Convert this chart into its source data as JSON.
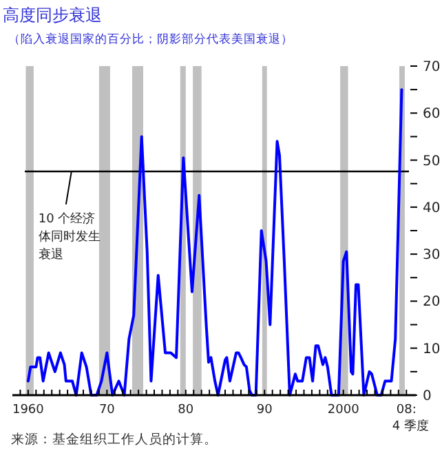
{
  "chart_data": {
    "type": "line",
    "title": "高度同步衰退",
    "subtitle": "（陷入衰退国家的百分比；阴影部分代表美国衰退）",
    "annotations": [
      {
        "text": "10 个经济体同时发生衰退",
        "x": 1965.5,
        "y": 47.6
      },
      "来源：基金组织工作人员的计算。"
    ],
    "series": [
      {
        "color": "#0000ff",
        "x": [
          1960.0,
          1960.3,
          1961.0,
          1961.2,
          1961.5,
          1961.9,
          1962.6,
          1963.4,
          1964.1,
          1964.6,
          1964.8,
          1965.6,
          1966.1,
          1966.8,
          1967.4,
          1968.0,
          1968.7,
          1969.3,
          1970.0,
          1970.7,
          1971.5,
          1972.2,
          1972.8,
          1973.4,
          1974.4,
          1975.1,
          1975.6,
          1976.5,
          1977.4,
          1978.1,
          1978.8,
          1979.7,
          1980.8,
          1981.7,
          1982.6,
          1982.9,
          1983.2,
          1983.7,
          1984.1,
          1985.0,
          1985.2,
          1985.6,
          1986.4,
          1986.7,
          1987.0,
          1987.4,
          1987.7,
          1988.1,
          1988.4,
          1988.9,
          1989.6,
          1990.2,
          1990.7,
          1991.6,
          1991.9,
          1992.5,
          1993.2,
          1993.9,
          1994.2,
          1994.8,
          1995.3,
          1995.7,
          1996.1,
          1996.5,
          1996.8,
          1997.4,
          1997.7,
          1998.0,
          1998.5,
          1999.4,
          2000.0,
          2000.4,
          2001.0,
          2001.2,
          2001.6,
          2001.9,
          2002.6,
          2003.3,
          2003.6,
          2004.3,
          2004.8,
          2005.3,
          2006.1,
          2006.6,
          2007.4
        ],
        "values": [
          3,
          6,
          6,
          8,
          8,
          3,
          9,
          5,
          9,
          6.5,
          3,
          3,
          0,
          9,
          6,
          0,
          0,
          3,
          9,
          0,
          3,
          0,
          12,
          17,
          55,
          30.5,
          3,
          25.5,
          9,
          9,
          8,
          50.5,
          22,
          42.5,
          15,
          7,
          8,
          3,
          0,
          7.5,
          8,
          3,
          9,
          9,
          8,
          6.5,
          6,
          1,
          0,
          0,
          35,
          28.5,
          15,
          54,
          51,
          28.5,
          0,
          4.5,
          3,
          3,
          8,
          8,
          3,
          10.5,
          10.5,
          6.5,
          8,
          6,
          0,
          0,
          28.5,
          30.5,
          5,
          4.5,
          23.5,
          23.5,
          0,
          5,
          4.5,
          0,
          0,
          3,
          3,
          12,
          65
        ]
      }
    ],
    "xlim": [
      1958,
      2009.2
    ],
    "ylim": [
      0,
      70
    ],
    "xticks": [
      {
        "value": 1959,
        "label": null
      },
      {
        "value": 1960,
        "label": "1960"
      },
      {
        "value": 1961,
        "label": null
      },
      {
        "value": 1962,
        "label": null
      },
      {
        "value": 1963,
        "label": null
      },
      {
        "value": 1964,
        "label": null
      },
      {
        "value": 1965,
        "label": null
      },
      {
        "value": 1966,
        "label": null
      },
      {
        "value": 1967,
        "label": null
      },
      {
        "value": 1968,
        "label": null
      },
      {
        "value": 1969,
        "label": null
      },
      {
        "value": 1970,
        "label": "70"
      },
      {
        "value": 1971,
        "label": null
      },
      {
        "value": 1972,
        "label": null
      },
      {
        "value": 1973,
        "label": null
      },
      {
        "value": 1974,
        "label": null
      },
      {
        "value": 1975,
        "label": null
      },
      {
        "value": 1976,
        "label": null
      },
      {
        "value": 1977,
        "label": null
      },
      {
        "value": 1978,
        "label": null
      },
      {
        "value": 1979,
        "label": null
      },
      {
        "value": 1980,
        "label": "80"
      },
      {
        "value": 1981,
        "label": null
      },
      {
        "value": 1982,
        "label": null
      },
      {
        "value": 1983,
        "label": null
      },
      {
        "value": 1984,
        "label": null
      },
      {
        "value": 1985,
        "label": null
      },
      {
        "value": 1986,
        "label": null
      },
      {
        "value": 1987,
        "label": null
      },
      {
        "value": 1988,
        "label": null
      },
      {
        "value": 1989,
        "label": null
      },
      {
        "value": 1990,
        "label": "90"
      },
      {
        "value": 1991,
        "label": null
      },
      {
        "value": 1992,
        "label": null
      },
      {
        "value": 1993,
        "label": null
      },
      {
        "value": 1994,
        "label": null
      },
      {
        "value": 1995,
        "label": null
      },
      {
        "value": 1996,
        "label": null
      },
      {
        "value": 1997,
        "label": null
      },
      {
        "value": 1998,
        "label": null
      },
      {
        "value": 1999,
        "label": null
      },
      {
        "value": 2000,
        "label": "2000"
      },
      {
        "value": 2001,
        "label": null
      },
      {
        "value": 2002,
        "label": null
      },
      {
        "value": 2003,
        "label": null
      },
      {
        "value": 2004,
        "label": null
      },
      {
        "value": 2005,
        "label": null
      },
      {
        "value": 2006,
        "label": null
      },
      {
        "value": 2007,
        "label": null
      },
      {
        "value": 2008,
        "label": "08:\n4 季度"
      }
    ],
    "yticks": [
      0,
      {
        "value": 5,
        "label": null
      },
      10,
      {
        "value": 15,
        "label": null
      },
      20,
      {
        "value": 25,
        "label": null
      },
      30,
      {
        "value": 35,
        "label": null
      },
      40,
      {
        "value": 45,
        "label": null
      },
      50,
      {
        "value": 55,
        "label": null
      },
      60,
      {
        "value": 65,
        "label": null
      },
      70
    ],
    "ref_lines": [
      {
        "axis": "y",
        "value": 47.6,
        "color": "#000000"
      }
    ],
    "bands": [
      {
        "axis": "x",
        "from": 1959.7,
        "to": 1960.7,
        "color": "#c0c0c0"
      },
      {
        "axis": "x",
        "from": 1969.0,
        "to": 1970.4,
        "color": "#c0c0c0"
      },
      {
        "axis": "x",
        "from": 1973.2,
        "to": 1974.6,
        "color": "#c0c0c0"
      },
      {
        "axis": "x",
        "from": 1979.3,
        "to": 1980.0,
        "color": "#c0c0c0"
      },
      {
        "axis": "x",
        "from": 1980.9,
        "to": 1982.0,
        "color": "#c0c0c0"
      },
      {
        "axis": "x",
        "from": 1989.7,
        "to": 1990.3,
        "color": "#c0c0c0"
      },
      {
        "axis": "x",
        "from": 1999.6,
        "to": 2000.6,
        "color": "#c0c0c0"
      },
      {
        "axis": "x",
        "from": 2007.1,
        "to": 2007.8,
        "color": "#c0c0c0"
      }
    ],
    "line_style": "solid"
  }
}
